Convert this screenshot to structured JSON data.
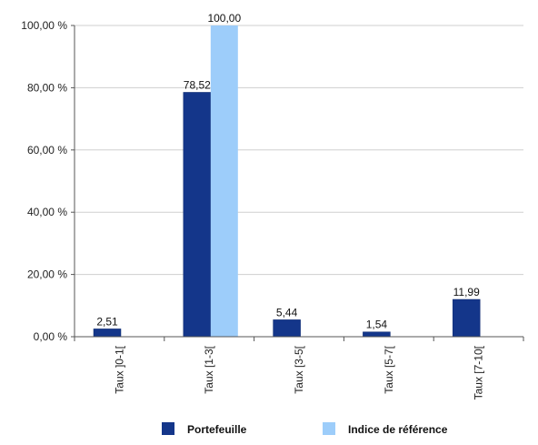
{
  "chart_data": {
    "type": "bar",
    "categories": [
      "Taux ]0-1[",
      "Taux [1-3[",
      "Taux [3-5[",
      "Taux [5-7[",
      "Taux [7-10["
    ],
    "series": [
      {
        "name": "Portefeuille",
        "values": [
          2.51,
          78.52,
          5.44,
          1.54,
          11.99
        ],
        "labels": [
          "2,51",
          "78,52",
          "5,44",
          "1,54",
          "11,99"
        ],
        "color": "#14368a"
      },
      {
        "name": "Indice de référence",
        "values": [
          null,
          100.0,
          null,
          null,
          null
        ],
        "labels": [
          "",
          "100,00",
          "",
          "",
          ""
        ],
        "color": "#9dcdfa"
      }
    ],
    "ylim": [
      0,
      100
    ],
    "yticks": [
      0,
      20,
      40,
      60,
      80,
      100
    ],
    "ytick_labels": [
      "0,00 %",
      "20,00 %",
      "40,00 %",
      "60,00 %",
      "80,00 %",
      "100,00 %"
    ],
    "grid": true,
    "legend_position": "bottom"
  }
}
